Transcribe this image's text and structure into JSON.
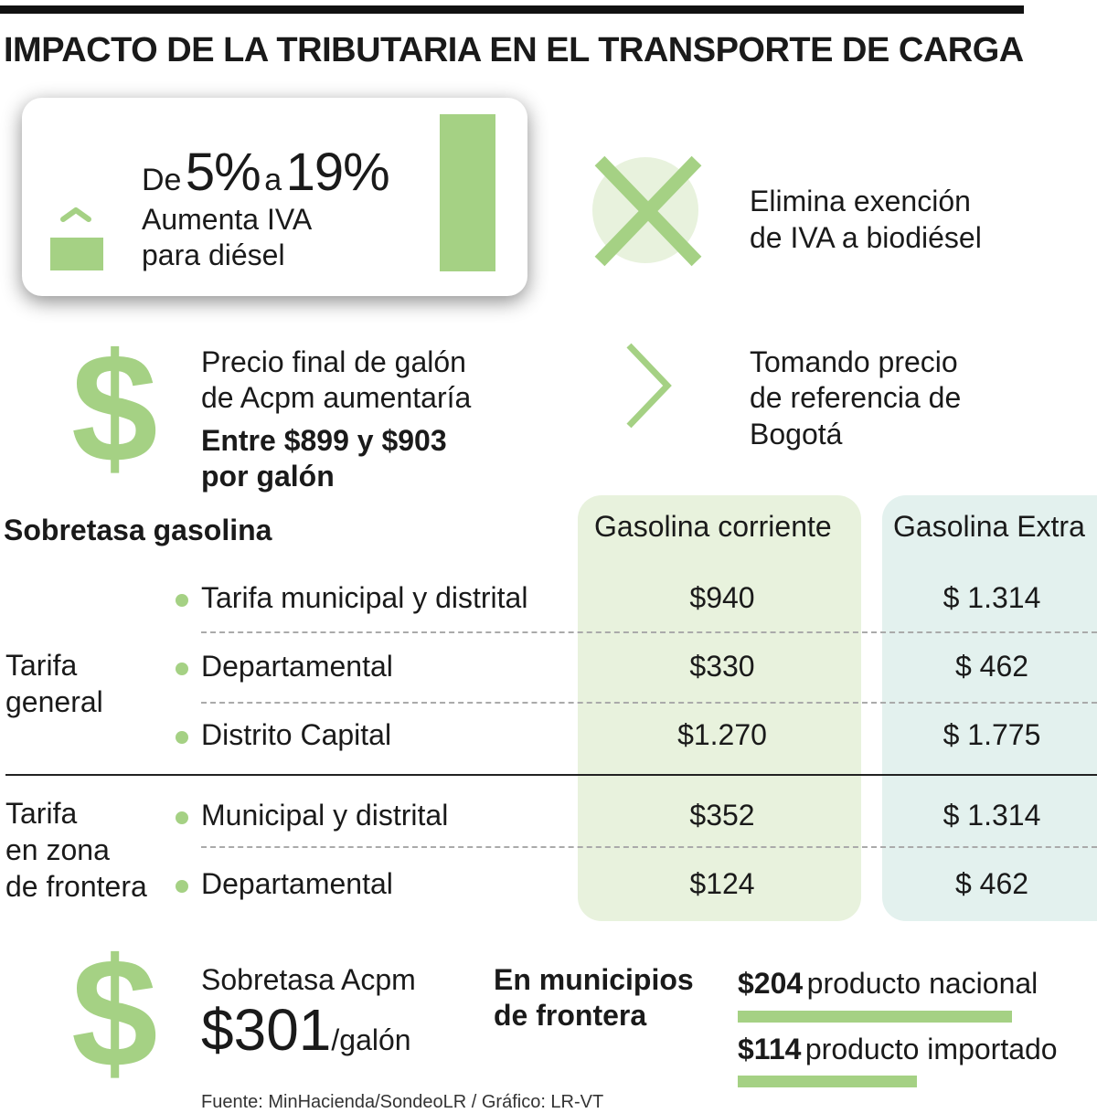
{
  "title": "IMPACTO DE LA TRIBUTARIA EN EL TRANSPORTE DE CARGA",
  "colors": {
    "accent": "#a5d184",
    "accent_light": "#e8f2dd",
    "teal_light": "#e3f1ee"
  },
  "iva_card": {
    "prefix": "De",
    "from": "5%",
    "connector": "a",
    "to": "19%",
    "line1": "Aumenta IVA",
    "line2": "para diésel"
  },
  "exencion": {
    "line1": "Elimina exención",
    "line2": "de IVA a biodiésel"
  },
  "precio": {
    "line1": "Precio final de galón",
    "line2": "de Acpm aumentaría",
    "bold1": "Entre $899 y $903",
    "bold2": "por galón"
  },
  "referencia": {
    "line1": "Tomando precio",
    "line2": "de referencia de",
    "line3": "Bogotá"
  },
  "table": {
    "heading": "Sobretasa gasolina",
    "columns": [
      "Gasolina corriente",
      "Gasolina Extra"
    ],
    "groups": [
      {
        "label_lines": [
          "Tarifa",
          "general"
        ],
        "rows": [
          {
            "label": "Tarifa municipal y distrital",
            "corriente": "$940",
            "extra": "$ 1.314"
          },
          {
            "label": "Departamental",
            "corriente": "$330",
            "extra": "$ 462"
          },
          {
            "label": "Distrito Capital",
            "corriente": "$1.270",
            "extra": "$ 1.775"
          }
        ]
      },
      {
        "label_lines": [
          "Tarifa",
          "en zona",
          "de frontera"
        ],
        "rows": [
          {
            "label": "Municipal y distrital",
            "corriente": "$352",
            "extra": "$ 1.314"
          },
          {
            "label": "Departamental",
            "corriente": "$124",
            "extra": "$ 462"
          }
        ]
      }
    ]
  },
  "acpm": {
    "label": "Sobretasa Acpm",
    "amount": "$301",
    "unit": "/galón",
    "frontera_line1": "En municipios",
    "frontera_line2": "de frontera",
    "nacional_value": "$204",
    "nacional_label": "producto nacional",
    "nacional_amount": 204,
    "importado_value": "$114",
    "importado_label": "producto importado",
    "importado_amount": 114
  },
  "source": "Fuente: MinHacienda/SondeoLR / Gráfico: LR-VT"
}
